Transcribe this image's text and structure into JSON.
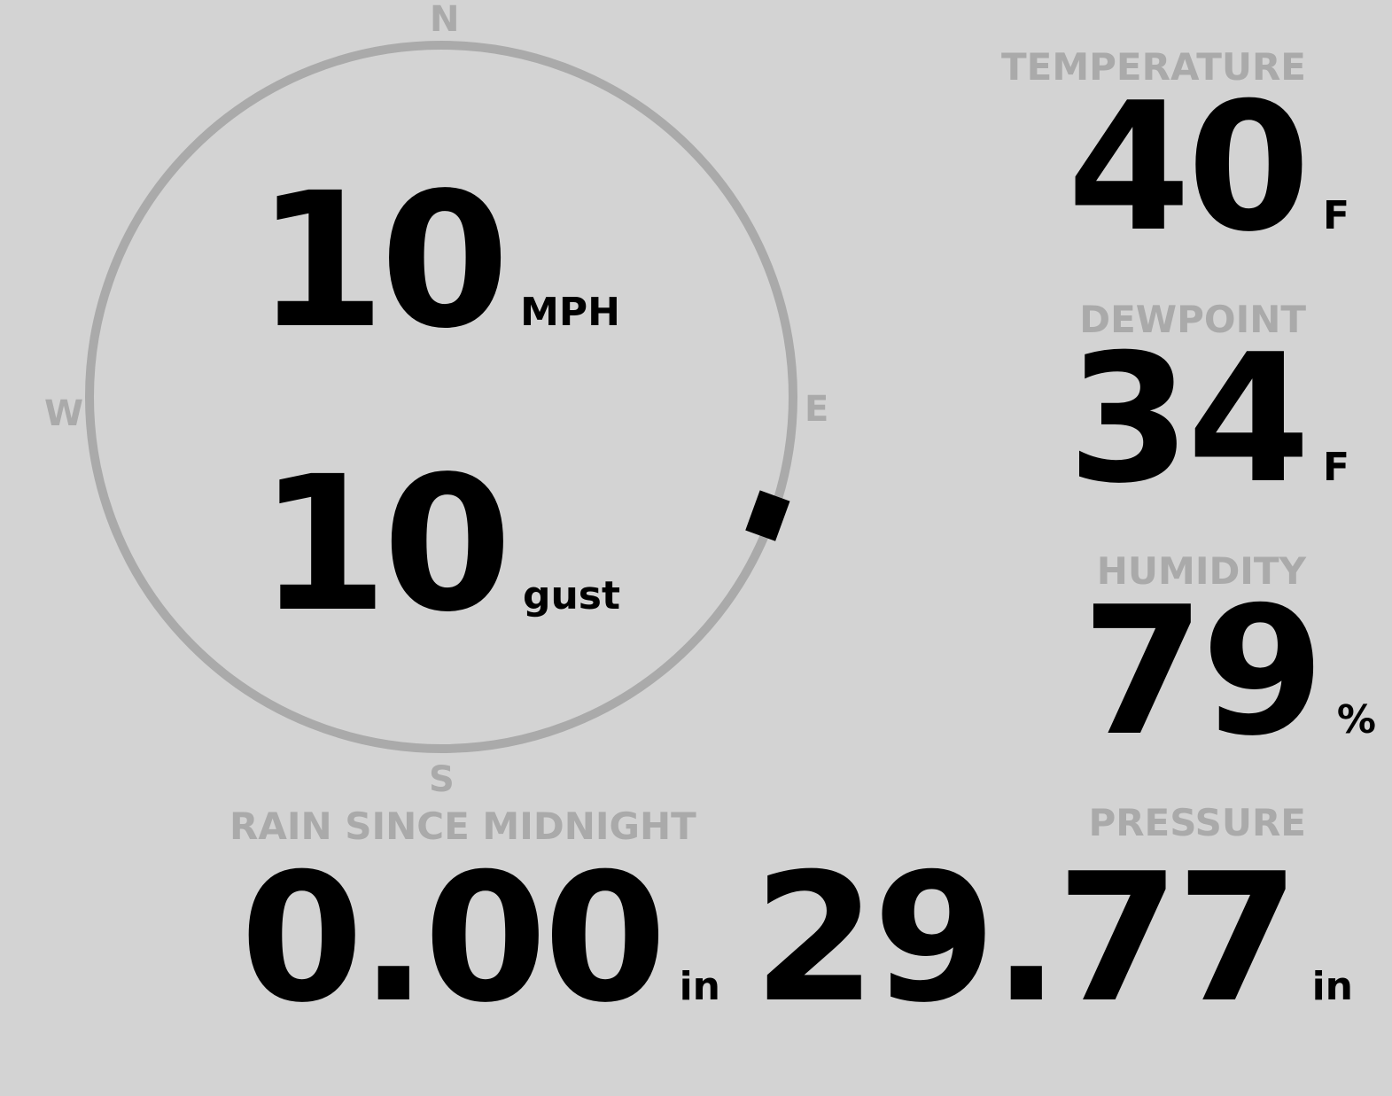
{
  "wind": {
    "speed": "10",
    "speed_unit": "MPH",
    "gust": "10",
    "gust_unit": "gust",
    "direction_degrees": 110,
    "compass": {
      "n": "N",
      "e": "E",
      "s": "S",
      "w": "W"
    }
  },
  "temperature": {
    "label": "TEMPERATURE",
    "value": "40",
    "unit": "F"
  },
  "dewpoint": {
    "label": "DEWPOINT",
    "value": "34",
    "unit": "F"
  },
  "humidity": {
    "label": "HUMIDITY",
    "value": "79",
    "unit": "%"
  },
  "rain": {
    "label": "RAIN SINCE MIDNIGHT",
    "value": "0.00",
    "unit": "in"
  },
  "pressure": {
    "label": "PRESSURE",
    "value": "29.77",
    "unit": "in"
  },
  "colors": {
    "background": "#d3d3d3",
    "muted": "#aaaaaa",
    "value": "#000000"
  }
}
